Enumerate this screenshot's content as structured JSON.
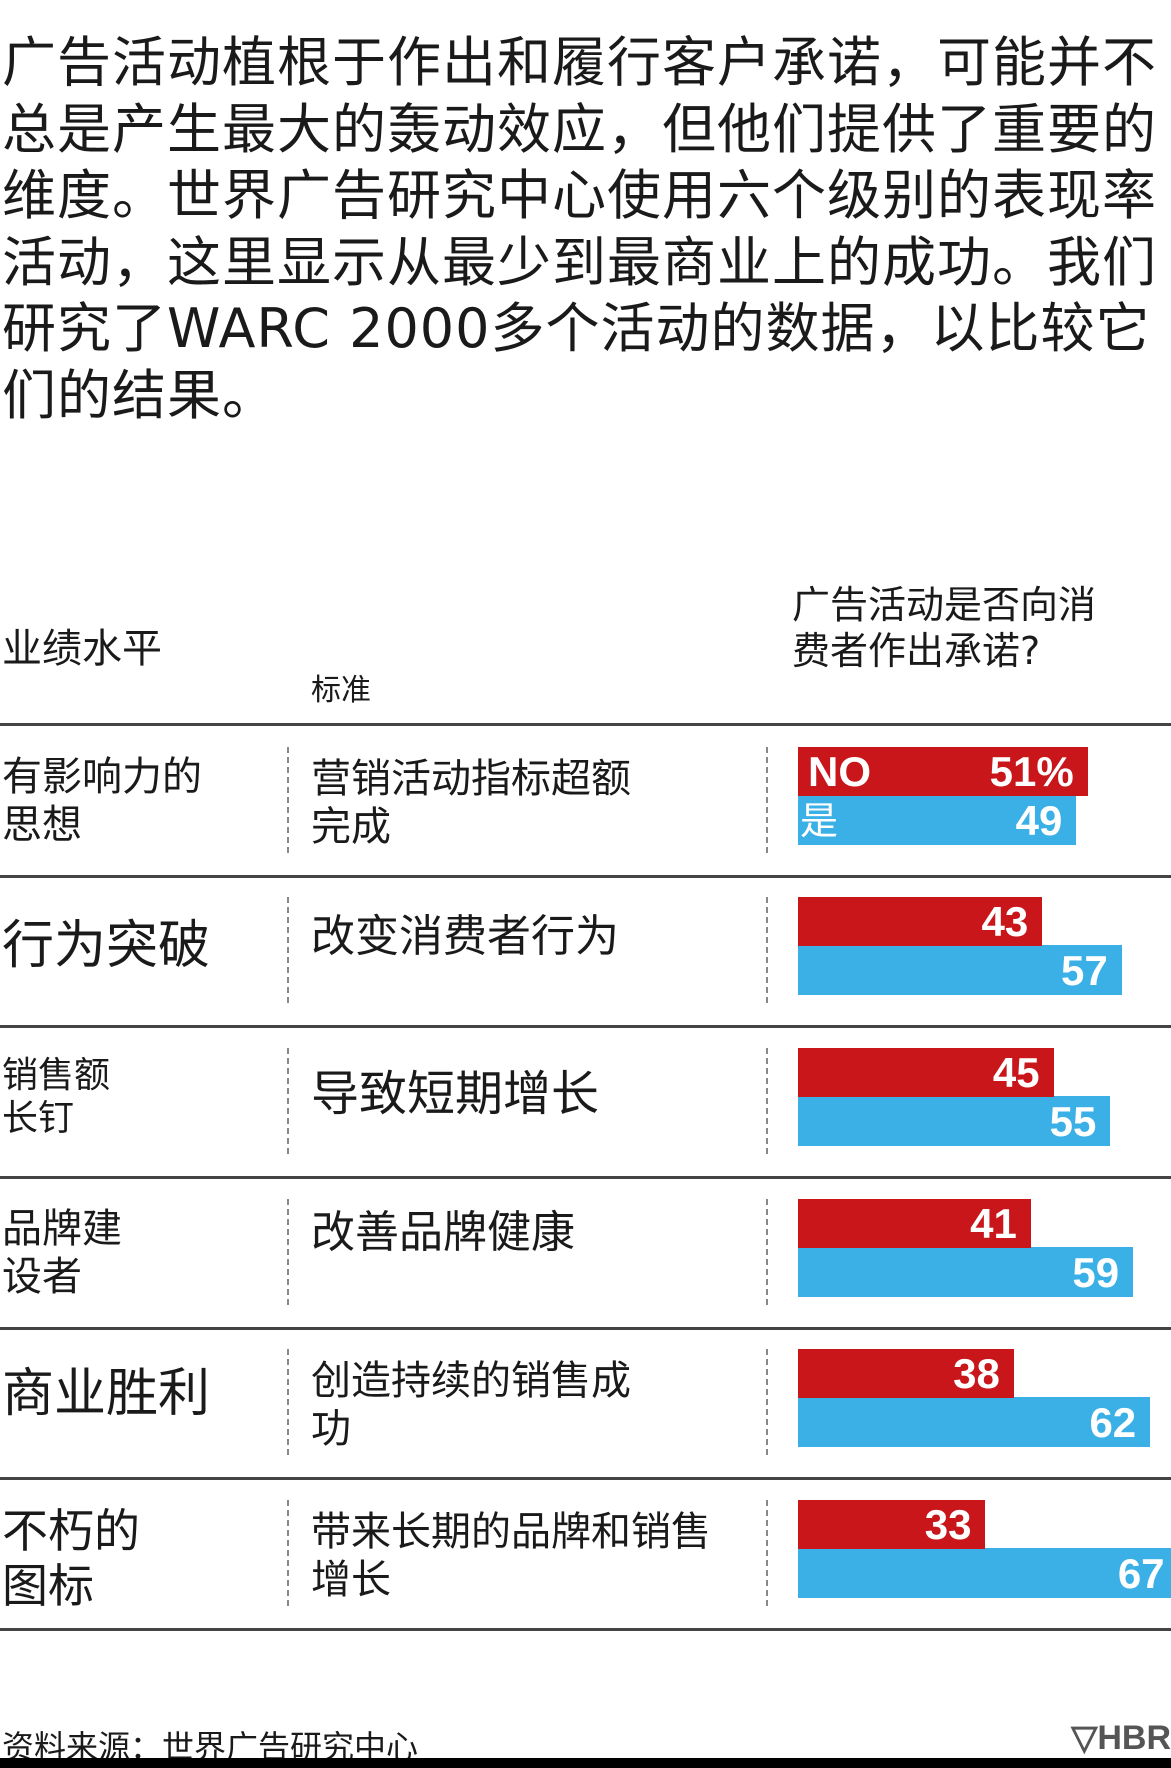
{
  "intro": "广告活动植根于作出和履行客户承诺，可能并不总是产生最大的轰动效应，但他们提供了重要的维度。世界广告研究中心使用六个级别的表现率活动，这里显示从最少到最商业上的成功。我们研究了WARC 2000多个活动的数据，以比较它们的结果。",
  "headers": {
    "level": "业绩水平",
    "criteria": "标准",
    "question": "广告活动是否向消费者作出承诺?"
  },
  "chart_data": {
    "type": "bar",
    "title": "广告活动是否向消费者作出承诺?",
    "legend": {
      "no": "NO",
      "yes": "是"
    },
    "colors": {
      "no": "#c8161b",
      "yes": "#3bb0e6"
    },
    "rows": [
      {
        "level": "有影响力的思想",
        "criteria": "营销活动指标超额完成",
        "no": 51,
        "yes": 49,
        "no_label": "51%",
        "yes_label": "49"
      },
      {
        "level": "行为突破",
        "criteria": "改变消费者行为",
        "no": 43,
        "yes": 57,
        "no_label": "43",
        "yes_label": "57"
      },
      {
        "level": "销售额长钉",
        "criteria": "导致短期增长",
        "no": 45,
        "yes": 55,
        "no_label": "45",
        "yes_label": "55"
      },
      {
        "level": "品牌建设者",
        "criteria": "改善品牌健康",
        "no": 41,
        "yes": 59,
        "no_label": "41",
        "yes_label": "59"
      },
      {
        "level": "商业胜利",
        "criteria": "创造持续的销售成功",
        "no": 38,
        "yes": 62,
        "no_label": "38",
        "yes_label": "62"
      },
      {
        "level": "不朽的图标",
        "criteria": "带来长期的品牌和销售增长",
        "no": 33,
        "yes": 67,
        "no_label": "33",
        "yes_label": "67"
      }
    ]
  },
  "source": "资料来源：世界广告研究中心",
  "brand": "▽HBR"
}
